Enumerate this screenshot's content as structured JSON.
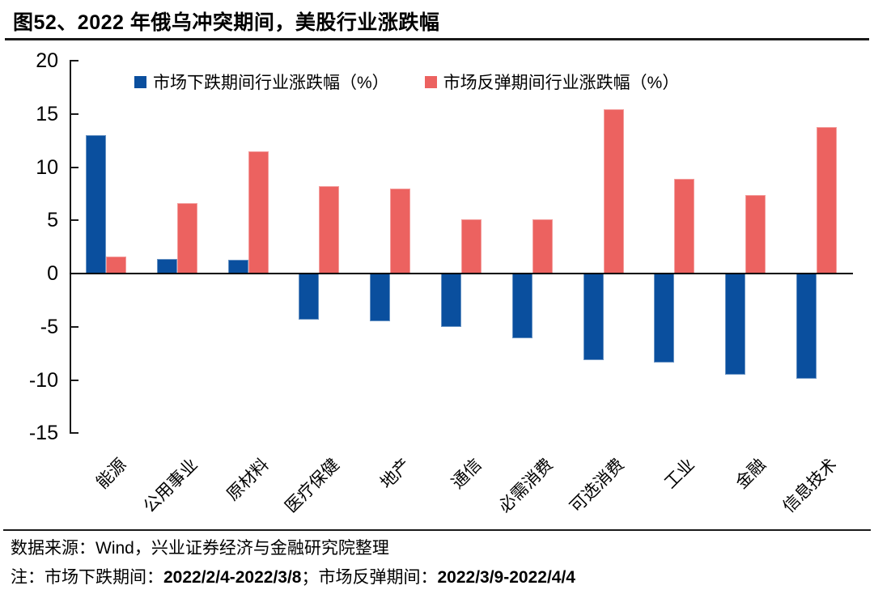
{
  "chart_data": {
    "type": "bar",
    "title": "图52、2022 年俄乌冲突期间，美股行业涨跌幅",
    "categories": [
      "能源",
      "公用事业",
      "原材料",
      "医疗保健",
      "地产",
      "通信",
      "必需消费",
      "可选消费",
      "工业",
      "金融",
      "信息技术"
    ],
    "series": [
      {
        "name": "市场下跌期间行业涨跌幅（%）",
        "color": "#0A4F9E",
        "values": [
          13.0,
          1.4,
          1.3,
          -4.3,
          -4.5,
          -5.0,
          -6.1,
          -8.1,
          -8.4,
          -9.5,
          -9.9
        ]
      },
      {
        "name": "市场反弹期间行业涨跌幅（%）",
        "color": "#EC6260",
        "values": [
          1.6,
          6.6,
          11.5,
          8.2,
          8.0,
          5.1,
          5.1,
          15.4,
          8.9,
          7.4,
          13.8
        ]
      }
    ],
    "xlabel": "",
    "ylabel": "",
    "ylim": [
      -15,
      20
    ],
    "yticks": [
      20,
      15,
      10,
      5,
      0,
      -5,
      -10,
      -15
    ],
    "legend_position": "top",
    "grid": false
  },
  "footer": {
    "source": "数据来源：Wind，兴业证券经济与金融研究院整理",
    "note_prefix": "注：市场下跌期间：",
    "note_period_decline": "2022/2/4-2022/3/8",
    "note_separator": "；市场反弹期间：",
    "note_period_rebound": "2022/3/9-2022/4/4"
  }
}
